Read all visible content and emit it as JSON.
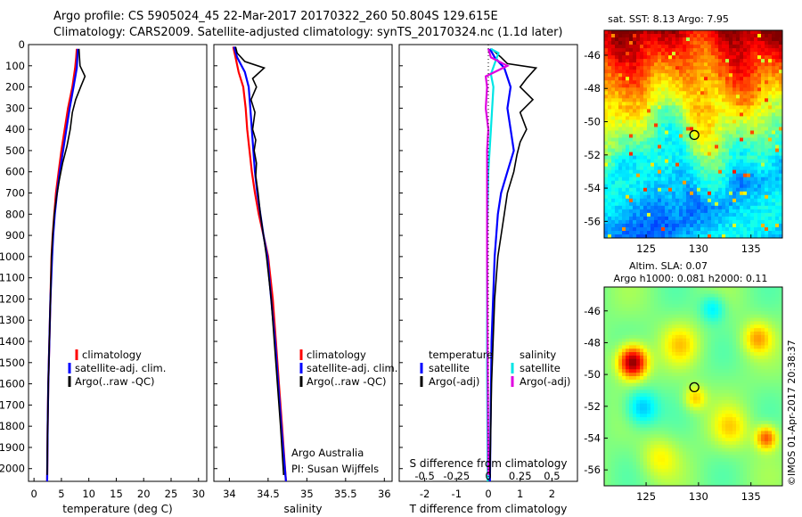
{
  "titles": {
    "line1": "Argo profile: CS 5905024_45 22-Mar-2017 20170322_260 50.804S 129.615E",
    "line2": "Climatology: CARS2009. Satellite-adjusted climatology: synTS_20170324.nc (1.1d later)"
  },
  "colors": {
    "climatology": "#ff0000",
    "satellite": "#0000ff",
    "argo": "#000000",
    "satellite_salinity": "#00e5e5",
    "argo_salinity_diff": "#e000e0"
  },
  "side_text": "©IMOS 01-Apr-2017 20:38:37",
  "chart_data": [
    {
      "type": "line",
      "xlabel": "temperature (deg C)",
      "ylabel": "",
      "xlim": [
        -1,
        31.5
      ],
      "ylim": [
        2060,
        0
      ],
      "xticks": [
        "0",
        "5",
        "10",
        "15",
        "20",
        "25",
        "30"
      ],
      "yticks": [
        "0",
        "100",
        "200",
        "300",
        "400",
        "500",
        "600",
        "700",
        "800",
        "900",
        "1000",
        "1100",
        "1200",
        "1300",
        "1400",
        "1500",
        "1600",
        "1700",
        "1800",
        "1900",
        "2000"
      ],
      "legend": [
        "climatology",
        "satellite-adj. clim.",
        "Argo(..raw -QC)"
      ],
      "series": [
        {
          "name": "climatology",
          "color": "red",
          "points": [
            [
              7.8,
              20
            ],
            [
              7.7,
              60
            ],
            [
              7.5,
              110
            ],
            [
              7,
              200
            ],
            [
              6.2,
              300
            ],
            [
              5.6,
              400
            ],
            [
              5.0,
              500
            ],
            [
              4.5,
              600
            ],
            [
              4.0,
              700
            ],
            [
              3.7,
              800
            ],
            [
              3.4,
              900
            ],
            [
              3.2,
              1000
            ],
            [
              3.0,
              1200
            ],
            [
              2.8,
              1400
            ],
            [
              2.6,
              1600
            ],
            [
              2.5,
              1800
            ],
            [
              2.4,
              2060
            ]
          ]
        },
        {
          "name": "satellite-adj. clim.",
          "color": "blue",
          "points": [
            [
              8.0,
              20
            ],
            [
              7.9,
              60
            ],
            [
              7.8,
              110
            ],
            [
              7.2,
              200
            ],
            [
              6.5,
              300
            ],
            [
              5.9,
              400
            ],
            [
              5.3,
              500
            ],
            [
              4.7,
              600
            ],
            [
              4.2,
              700
            ],
            [
              3.8,
              800
            ],
            [
              3.5,
              900
            ],
            [
              3.3,
              1000
            ],
            [
              3.0,
              1200
            ],
            [
              2.8,
              1400
            ],
            [
              2.6,
              1600
            ],
            [
              2.5,
              1800
            ],
            [
              2.4,
              2060
            ]
          ]
        },
        {
          "name": "Argo(..raw -QC)",
          "color": "black",
          "points": [
            [
              8.2,
              20
            ],
            [
              8.3,
              60
            ],
            [
              8.4,
              100
            ],
            [
              9.3,
              150
            ],
            [
              8.5,
              200
            ],
            [
              7.6,
              260
            ],
            [
              7.0,
              320
            ],
            [
              6.6,
              400
            ],
            [
              6.0,
              480
            ],
            [
              5.2,
              560
            ],
            [
              4.6,
              640
            ],
            [
              4.1,
              720
            ],
            [
              3.7,
              800
            ],
            [
              3.4,
              900
            ],
            [
              3.2,
              1000
            ],
            [
              3.0,
              1200
            ],
            [
              2.8,
              1400
            ],
            [
              2.6,
              1600
            ],
            [
              2.5,
              1800
            ],
            [
              2.4,
              2030
            ]
          ]
        }
      ]
    },
    {
      "type": "line",
      "xlabel": "salinity",
      "ylabel": "",
      "xlim": [
        33.8,
        36.1
      ],
      "ylim": [
        2060,
        0
      ],
      "xticks": [
        "34",
        "34.5",
        "35",
        "35.5",
        "36"
      ],
      "legend": [
        "climatology",
        "satellite-adj. clim.",
        "Argo(..raw -QC)"
      ],
      "annotation": [
        "Argo Australia",
        "PI: Susan Wijffels"
      ],
      "series": [
        {
          "name": "climatology",
          "color": "red",
          "points": [
            [
              34.05,
              10
            ],
            [
              34.08,
              60
            ],
            [
              34.12,
              130
            ],
            [
              34.18,
              200
            ],
            [
              34.21,
              300
            ],
            [
              34.23,
              400
            ],
            [
              34.26,
              500
            ],
            [
              34.29,
              600
            ],
            [
              34.33,
              700
            ],
            [
              34.38,
              800
            ],
            [
              34.44,
              900
            ],
            [
              34.5,
              1000
            ],
            [
              34.56,
              1200
            ],
            [
              34.6,
              1400
            ],
            [
              34.64,
              1600
            ],
            [
              34.68,
              1800
            ],
            [
              34.73,
              2060
            ]
          ]
        },
        {
          "name": "satellite-adj. clim.",
          "color": "blue",
          "points": [
            [
              34.06,
              10
            ],
            [
              34.1,
              60
            ],
            [
              34.2,
              130
            ],
            [
              34.25,
              200
            ],
            [
              34.27,
              300
            ],
            [
              34.29,
              400
            ],
            [
              34.31,
              500
            ],
            [
              34.33,
              600
            ],
            [
              34.36,
              700
            ],
            [
              34.4,
              800
            ],
            [
              34.44,
              900
            ],
            [
              34.49,
              1000
            ],
            [
              34.54,
              1200
            ],
            [
              34.59,
              1400
            ],
            [
              34.63,
              1600
            ],
            [
              34.67,
              1800
            ],
            [
              34.73,
              2060
            ]
          ]
        },
        {
          "name": "Argo(..raw -QC)",
          "color": "black",
          "points": [
            [
              34.08,
              10
            ],
            [
              34.1,
              40
            ],
            [
              34.2,
              80
            ],
            [
              34.45,
              110
            ],
            [
              34.3,
              160
            ],
            [
              34.35,
              200
            ],
            [
              34.28,
              260
            ],
            [
              34.33,
              320
            ],
            [
              34.3,
              400
            ],
            [
              34.34,
              450
            ],
            [
              34.32,
              500
            ],
            [
              34.35,
              560
            ],
            [
              34.34,
              620
            ],
            [
              34.37,
              700
            ],
            [
              34.4,
              800
            ],
            [
              34.44,
              900
            ],
            [
              34.48,
              1000
            ],
            [
              34.54,
              1200
            ],
            [
              34.58,
              1400
            ],
            [
              34.62,
              1600
            ],
            [
              34.66,
              1800
            ],
            [
              34.7,
              2030
            ]
          ]
        }
      ]
    },
    {
      "type": "line",
      "xlabel": "T difference from climatology",
      "xlabel_top": "S difference from climatology",
      "xlim": [
        -2.8,
        2.8
      ],
      "ylim": [
        2060,
        0
      ],
      "xticks": [
        "-2",
        "-1",
        "0",
        "1",
        "2"
      ],
      "xticks_top": [
        "-0.5",
        "-0.25",
        "0",
        "0.25",
        "0.5"
      ],
      "legend_title_left": "temperature",
      "legend_title_right": "salinity",
      "legend_left": [
        "satellite",
        "Argo(-adj)"
      ],
      "legend_right": [
        "satellite",
        "Argo(-adj)"
      ],
      "series": [
        {
          "name": "T satellite",
          "color": "blue",
          "points": [
            [
              0.05,
              20
            ],
            [
              0.2,
              60
            ],
            [
              0.5,
              110
            ],
            [
              0.7,
              200
            ],
            [
              0.6,
              300
            ],
            [
              0.7,
              400
            ],
            [
              0.8,
              500
            ],
            [
              0.6,
              600
            ],
            [
              0.4,
              700
            ],
            [
              0.3,
              800
            ],
            [
              0.2,
              1000
            ],
            [
              0.1,
              1400
            ],
            [
              0.05,
              2060
            ]
          ]
        },
        {
          "name": "T Argo(-adj)",
          "color": "black",
          "points": [
            [
              0.1,
              20
            ],
            [
              0.4,
              60
            ],
            [
              0.6,
              90
            ],
            [
              1.5,
              110
            ],
            [
              1.2,
              160
            ],
            [
              1.0,
              200
            ],
            [
              1.4,
              260
            ],
            [
              1.0,
              320
            ],
            [
              1.2,
              400
            ],
            [
              1.0,
              460
            ],
            [
              0.9,
              520
            ],
            [
              0.8,
              600
            ],
            [
              0.6,
              700
            ],
            [
              0.5,
              800
            ],
            [
              0.4,
              900
            ],
            [
              0.3,
              1000
            ],
            [
              0.2,
              1200
            ],
            [
              0.1,
              1600
            ],
            [
              0.05,
              2030
            ]
          ]
        },
        {
          "name": "S satellite",
          "color": "cyan",
          "points": [
            [
              0.02,
              20
            ],
            [
              0.08,
              40
            ],
            [
              0.05,
              90
            ],
            [
              0.02,
              140
            ],
            [
              0.04,
              200
            ],
            [
              0.03,
              300
            ],
            [
              0.02,
              400
            ],
            [
              0.0,
              600
            ],
            [
              -0.01,
              900
            ],
            [
              -0.01,
              1500
            ],
            [
              -0.005,
              2060
            ]
          ]
        },
        {
          "name": "S Argo(-adj)",
          "color": "magenta",
          "points": [
            [
              0.0,
              20
            ],
            [
              0.02,
              60
            ],
            [
              0.15,
              100
            ],
            [
              -0.02,
              150
            ],
            [
              -0.01,
              200
            ],
            [
              -0.02,
              300
            ],
            [
              0.0,
              400
            ],
            [
              -0.01,
              500
            ],
            [
              -0.01,
              700
            ],
            [
              -0.01,
              1000
            ],
            [
              -0.005,
              1500
            ],
            [
              0.0,
              2030
            ]
          ]
        }
      ]
    },
    {
      "type": "heatmap",
      "title": "sat. SST: 8.13 Argo: 7.95",
      "xticks": [
        "125",
        "130",
        "135"
      ],
      "yticks": [
        "-46",
        "-48",
        "-50",
        "-52",
        "-54",
        "-56"
      ],
      "xlim": [
        121,
        138
      ],
      "ylim": [
        -57,
        -44.5
      ],
      "marker": [
        129.6,
        -50.8
      ]
    },
    {
      "type": "heatmap",
      "title_line1": "Altim. SLA: 0.07",
      "title_line2": "Argo h1000: 0.081 h2000: 0.11",
      "xticks": [
        "125",
        "130",
        "135"
      ],
      "yticks": [
        "-46",
        "-48",
        "-50",
        "-52",
        "-54",
        "-56"
      ],
      "xlim": [
        121,
        138
      ],
      "ylim": [
        -57,
        -44.5
      ],
      "marker": [
        129.6,
        -50.8
      ]
    }
  ]
}
